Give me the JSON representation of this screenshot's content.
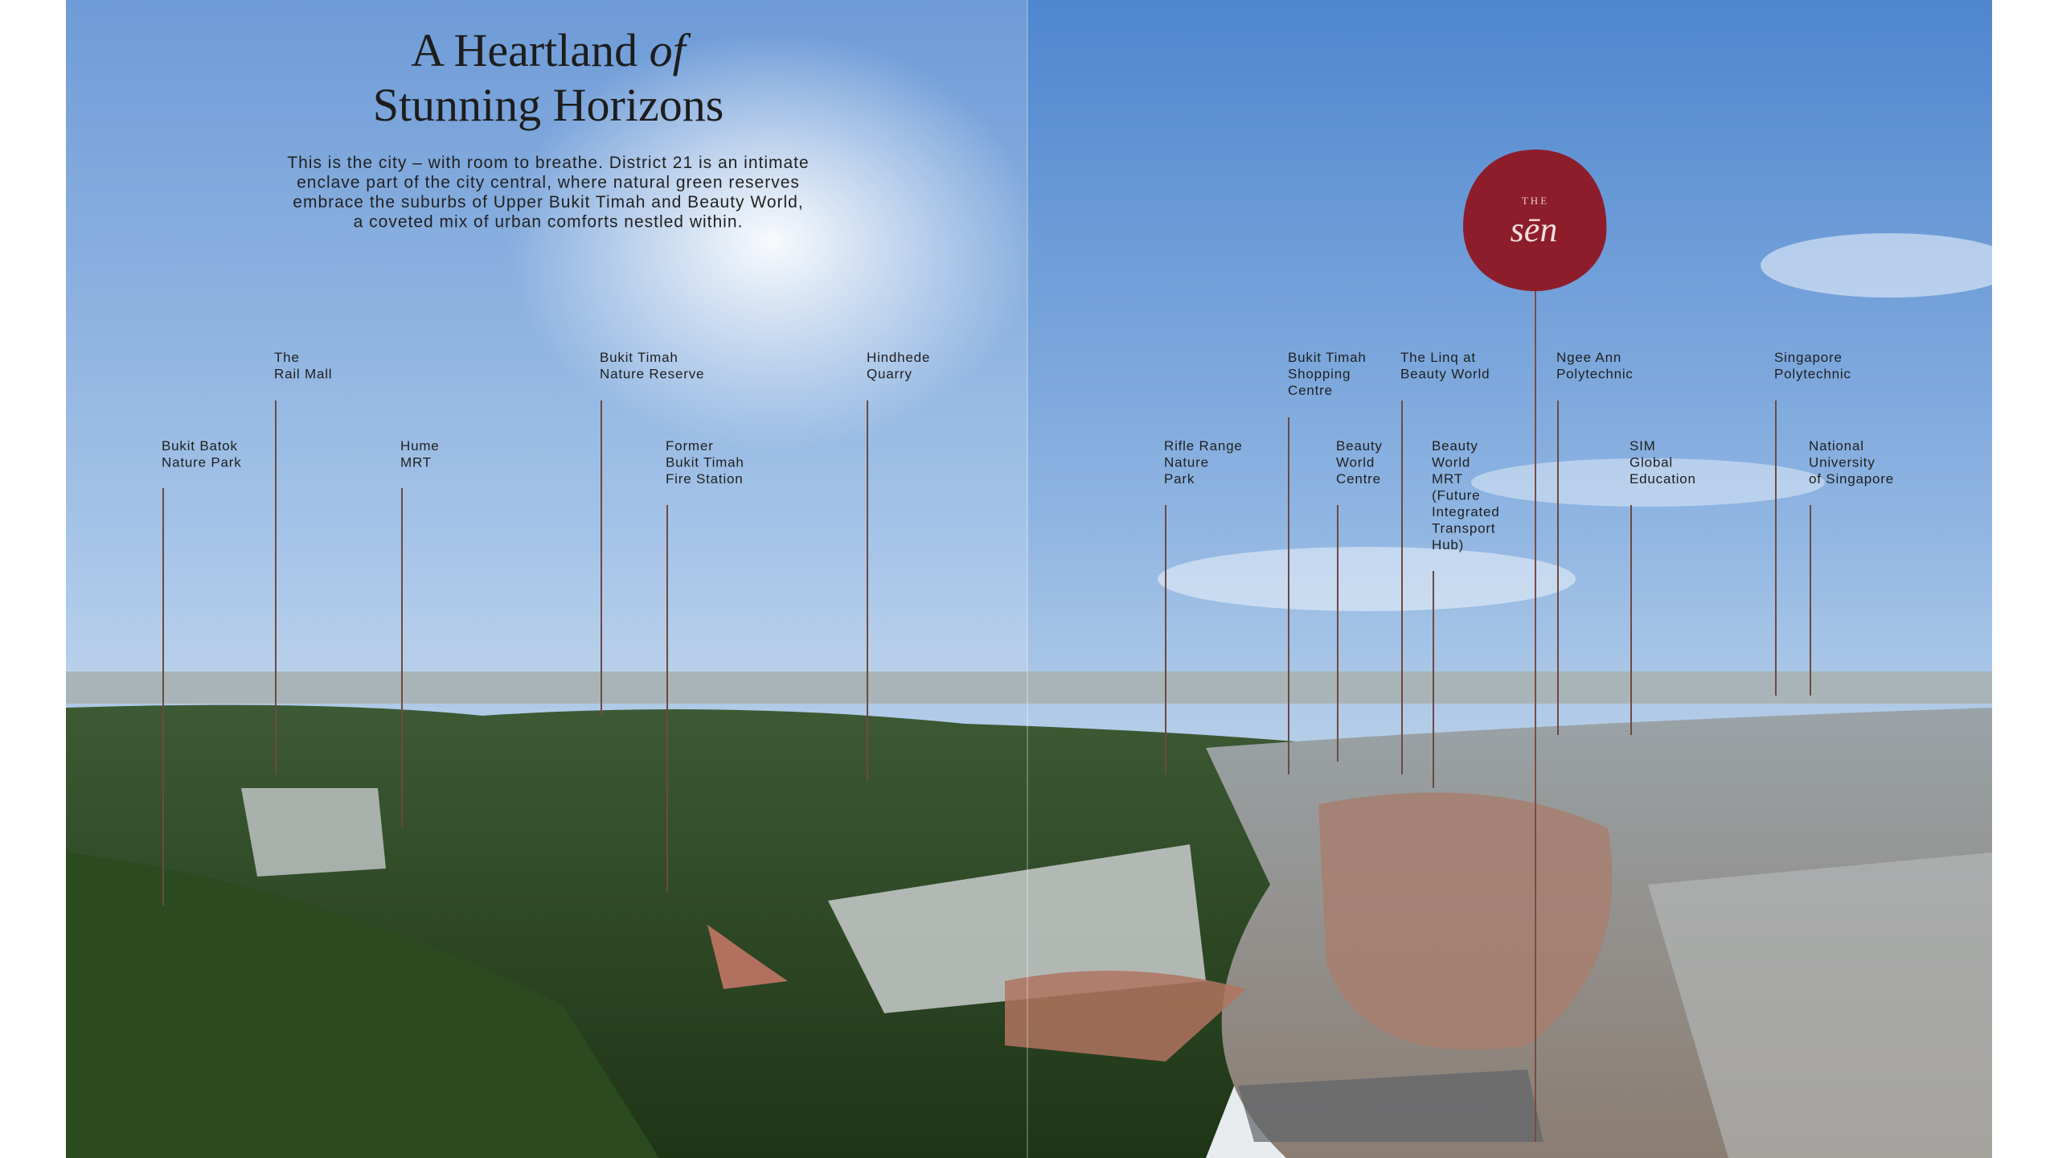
{
  "header": {
    "title_line1": "A Heartland",
    "title_italic": "of",
    "title_line2": "Stunning Horizons",
    "intro": [
      "This is the city – with room to breathe. District 21 is an intimate",
      "enclave part of the city central, where natural green reserves",
      "embrace the suburbs of Upper Bukit Timah and Beauty World,",
      "a coveted mix of urban comforts nestled within."
    ]
  },
  "landmarks": [
    {
      "lines": [
        "Bukit Batok",
        "Nature Park"
      ]
    },
    {
      "lines": [
        "The",
        "Rail Mall"
      ]
    },
    {
      "lines": [
        "Hume",
        "MRT"
      ]
    },
    {
      "lines": [
        "Bukit Timah",
        "Nature Reserve"
      ]
    },
    {
      "lines": [
        "Former",
        "Bukit Timah",
        "Fire Station"
      ]
    },
    {
      "lines": [
        "Hindhede",
        "Quarry"
      ]
    },
    {
      "lines": [
        "Rifle Range",
        "Nature",
        "Park"
      ]
    },
    {
      "lines": [
        "Bukit Timah",
        "Shopping",
        "Centre"
      ]
    },
    {
      "lines": [
        "Beauty",
        "World",
        "Centre"
      ]
    },
    {
      "lines": [
        "The Linq at",
        "Beauty World"
      ]
    },
    {
      "lines": [
        "Beauty",
        "World",
        "MRT",
        "(Future",
        "Integrated",
        "Transport",
        "Hub)"
      ]
    },
    {
      "lines": [
        "Ngee Ann",
        "Polytechnic"
      ]
    },
    {
      "lines": [
        "SIM",
        "Global",
        "Education"
      ]
    },
    {
      "lines": [
        "Singapore",
        "Polytechnic"
      ]
    },
    {
      "lines": [
        "National",
        "University",
        "of Singapore"
      ]
    }
  ],
  "pin": {
    "small": "THE",
    "name": "sēn"
  }
}
